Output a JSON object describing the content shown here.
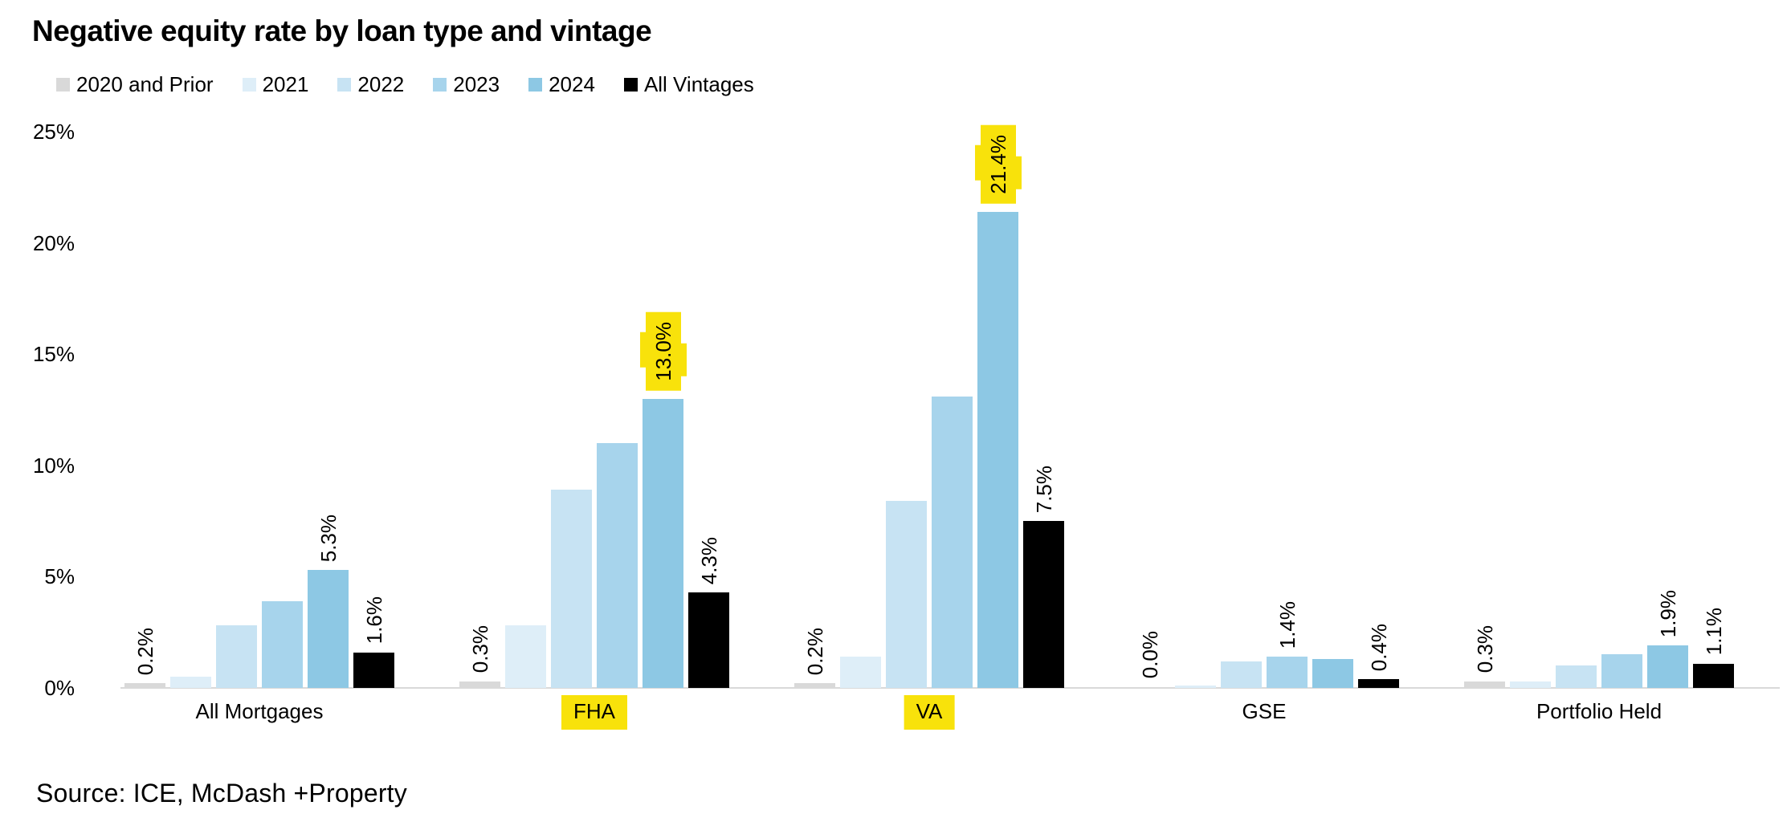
{
  "title": "Negative equity rate by loan type and vintage",
  "source": "Source: ICE, McDash +Property",
  "colors": {
    "highlight_yellow": "#f8e20b",
    "axis_line": "#d9d9d9",
    "text": "#000000"
  },
  "chart_data": {
    "type": "bar",
    "title": "Negative equity rate by loan type and vintage",
    "xlabel": "",
    "ylabel": "",
    "ylim": [
      0,
      25
    ],
    "yticks": [
      "0%",
      "5%",
      "10%",
      "15%",
      "20%",
      "25%"
    ],
    "grid": false,
    "legend_position": "top-left",
    "categories": [
      "All Mortgages",
      "FHA",
      "VA",
      "GSE",
      "Portfolio Held"
    ],
    "highlighted_categories": [
      "FHA",
      "VA"
    ],
    "series": [
      {
        "name": "2020 and Prior",
        "color": "#d9d9d9",
        "values": [
          0.2,
          0.3,
          0.2,
          0.0,
          0.3
        ]
      },
      {
        "name": "2021",
        "color": "#deeef8",
        "values": [
          0.5,
          2.8,
          1.4,
          0.1,
          0.3
        ]
      },
      {
        "name": "2022",
        "color": "#c7e3f3",
        "values": [
          2.8,
          8.9,
          8.4,
          1.2,
          1.0
        ]
      },
      {
        "name": "2023",
        "color": "#a7d4ec",
        "values": [
          3.9,
          11.0,
          13.1,
          1.4,
          1.5
        ]
      },
      {
        "name": "2024",
        "color": "#8dc8e4",
        "values": [
          5.3,
          13.0,
          21.4,
          1.3,
          1.9
        ]
      },
      {
        "name": "All Vintages",
        "color": "#000000",
        "values": [
          1.6,
          4.3,
          7.5,
          0.4,
          1.1
        ]
      }
    ],
    "bar_labels": [
      {
        "category": "All Mortgages",
        "series": "2020 and Prior",
        "text": "0.2%",
        "highlight": false
      },
      {
        "category": "All Mortgages",
        "series": "2024",
        "text": "5.3%",
        "highlight": false
      },
      {
        "category": "All Mortgages",
        "series": "All Vintages",
        "text": "1.6%",
        "highlight": false
      },
      {
        "category": "FHA",
        "series": "2020 and Prior",
        "text": "0.3%",
        "highlight": false
      },
      {
        "category": "FHA",
        "series": "2024",
        "text": "13.0%",
        "highlight": true
      },
      {
        "category": "FHA",
        "series": "All Vintages",
        "text": "4.3%",
        "highlight": false
      },
      {
        "category": "VA",
        "series": "2020 and Prior",
        "text": "0.2%",
        "highlight": false
      },
      {
        "category": "VA",
        "series": "2024",
        "text": "21.4%",
        "highlight": true
      },
      {
        "category": "VA",
        "series": "All Vintages",
        "text": "7.5%",
        "highlight": false
      },
      {
        "category": "GSE",
        "series": "2020 and Prior",
        "text": "0.0%",
        "highlight": false
      },
      {
        "category": "GSE",
        "series": "2023",
        "text": "1.4%",
        "highlight": false
      },
      {
        "category": "GSE",
        "series": "All Vintages",
        "text": "0.4%",
        "highlight": false
      },
      {
        "category": "Portfolio Held",
        "series": "2020 and Prior",
        "text": "0.3%",
        "highlight": false
      },
      {
        "category": "Portfolio Held",
        "series": "2024",
        "text": "1.9%",
        "highlight": false
      },
      {
        "category": "Portfolio Held",
        "series": "All Vintages",
        "text": "1.1%",
        "highlight": false
      }
    ]
  }
}
